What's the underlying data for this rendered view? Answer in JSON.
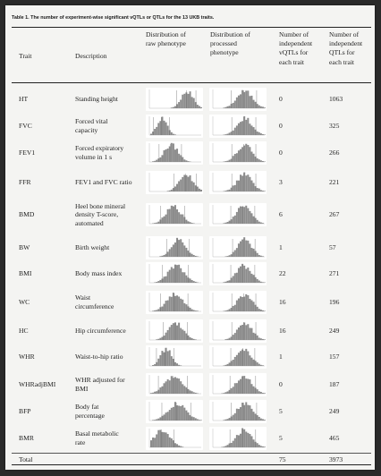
{
  "caption": "Table 1. The number of experiment-wise significant vQTLs or QTLs for the 13 UKB traits.",
  "headers": {
    "trait": "Trait",
    "description": "Description",
    "raw": [
      "Distribution of",
      "raw phenotype"
    ],
    "processed": [
      "Distribution of",
      "processed",
      "phenotype"
    ],
    "vqtls": [
      "Number of",
      "independent",
      "vQTLs for",
      "each trait"
    ],
    "qtls": [
      "Number of",
      "independent",
      "QTLs for",
      "each trait"
    ]
  },
  "rows": [
    {
      "trait": "HT",
      "desc": [
        "Standing height"
      ],
      "vqtls": "0",
      "qtls": "1063"
    },
    {
      "trait": "FVC",
      "desc": [
        "Forced vital",
        "capacity"
      ],
      "vqtls": "0",
      "qtls": "325"
    },
    {
      "trait": "FEV1",
      "desc": [
        "Forced expiratory",
        "volume in 1 s"
      ],
      "vqtls": "0",
      "qtls": "266"
    },
    {
      "trait": "FFR",
      "desc": [
        "FEV1 and FVC ratio"
      ],
      "vqtls": "3",
      "qtls": "221"
    },
    {
      "trait": "BMD",
      "desc": [
        "Heel bone mineral",
        "density T-score,",
        "automated"
      ],
      "vqtls": "6",
      "qtls": "267"
    },
    {
      "trait": "BW",
      "desc": [
        "Birth weight"
      ],
      "vqtls": "1",
      "qtls": "57"
    },
    {
      "trait": "BMI",
      "desc": [
        "Body mass index"
      ],
      "vqtls": "22",
      "qtls": "271"
    },
    {
      "trait": "WC",
      "desc": [
        "Waist",
        "circumference"
      ],
      "vqtls": "16",
      "qtls": "196"
    },
    {
      "trait": "HC",
      "desc": [
        "Hip circumference"
      ],
      "vqtls": "16",
      "qtls": "249"
    },
    {
      "trait": "WHR",
      "desc": [
        "Waist-to-hip ratio"
      ],
      "vqtls": "1",
      "qtls": "157"
    },
    {
      "trait": "WHRadjBMI",
      "desc": [
        "WHR adjusted for",
        "BMI"
      ],
      "vqtls": "0",
      "qtls": "187"
    },
    {
      "trait": "BFP",
      "desc": [
        "Body fat",
        "percentage"
      ],
      "vqtls": "5",
      "qtls": "249"
    },
    {
      "trait": "BMR",
      "desc": [
        "Basal metabolic",
        "rate"
      ],
      "vqtls": "5",
      "qtls": "465"
    }
  ],
  "total": {
    "label": "Total",
    "vqtls": "75",
    "qtls": "3973"
  }
}
